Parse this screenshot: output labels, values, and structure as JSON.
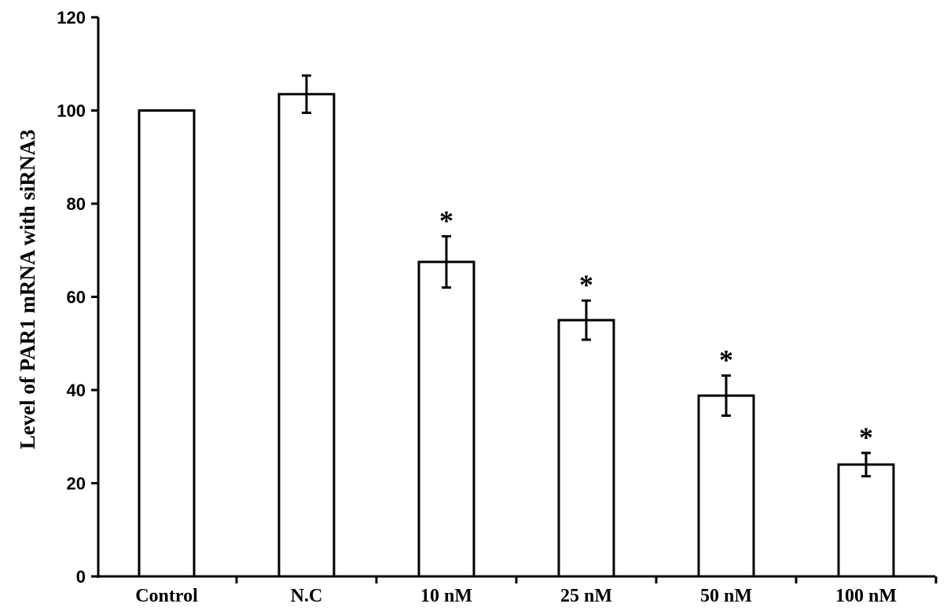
{
  "chart_data": {
    "type": "bar",
    "title": "",
    "xlabel": "",
    "ylabel": "Level of PAR1 mRNA with siRNA3",
    "categories": [
      "Control",
      "N.C",
      "10 nM",
      "25 nM",
      "50 nM",
      "100 nM"
    ],
    "values": [
      100,
      103.5,
      67.5,
      55,
      38.8,
      24
    ],
    "error_bars": [
      0,
      4,
      5.5,
      4.2,
      4.3,
      2.5
    ],
    "annotations": [
      "",
      "",
      "*",
      "*",
      "*",
      "*"
    ],
    "ylim": [
      0,
      120
    ],
    "yticks": [
      0,
      20,
      40,
      60,
      80,
      100,
      120
    ],
    "ytick_labels": [
      "0",
      "20",
      "40",
      "60",
      "80",
      "100",
      "120"
    ],
    "grid": false,
    "legend": "none",
    "colors": {
      "bar_fill": "#ffffff",
      "bar_stroke": "#000000",
      "axis": "#000000"
    }
  }
}
